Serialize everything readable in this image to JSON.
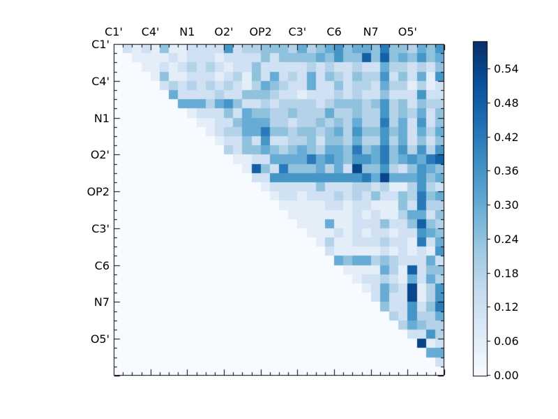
{
  "figure": {
    "background_color": "#ffffff",
    "axes_frame_color": "#000000",
    "tick_color": "#000000"
  },
  "chart_data": {
    "type": "heatmap",
    "title": "",
    "n": 36,
    "x_tick_labels": [
      "C1'",
      "C4'",
      "N1",
      "O2'",
      "OP2",
      "C3'",
      "C6",
      "N7",
      "O5'"
    ],
    "y_tick_labels": [
      "C1'",
      "C4'",
      "N1",
      "O2'",
      "OP2",
      "C3'",
      "C6",
      "N7",
      "O5'"
    ],
    "axis_label_cell_positions": [
      0,
      4,
      8,
      12,
      16,
      20,
      24,
      28,
      32
    ],
    "layout": {
      "grid": false,
      "triangle": "upper",
      "lower_triangle_value": 0.0,
      "colorbar_position": "right"
    },
    "level_step": 0.06,
    "vmin": 0.0,
    "vmax": 0.587,
    "upper_triangle_levels": [
      "21214112222623344435345645547443546",
      "1111212221222242444454644848454645",
      "112123232122422222323223225332324",
      "14112221231425232524324336242516",
      "2323232321354322522423325331312",
      "522223224443221222323224222622",
      "55535642232333323444346342433",
      "1222425443343335334336343524",
      "112245553323343435337352624",
      "12335574434434536446452535",
      "1224262233424435336352424",
      "324454345435547457463636",
      "11225555756546657456578",
      "1842744453529446324654",
      "226666666666759555645",
      "12222242223323113632",
      "1221222323242243745",
      "111112212211142733",
      "11111112121135524",
      "1115112224224843",
      "111212122122654",
      "13112223221725",
      "2111112121216",
      "545534322252",
      "11115318244",
      "1223215253",
      "125329136",
      "25229136",
      "4226247",
      "326335",
      "35433",
      "2263",
      "912",
      "55",
      "2",
      ""
    ],
    "colormap_name": "Blues",
    "colormap_stops": [
      {
        "t": 0.0,
        "color": "#f7fbff"
      },
      {
        "t": 0.125,
        "color": "#deebf7"
      },
      {
        "t": 0.25,
        "color": "#c6dbef"
      },
      {
        "t": 0.375,
        "color": "#9ecae1"
      },
      {
        "t": 0.5,
        "color": "#6baed6"
      },
      {
        "t": 0.625,
        "color": "#4292c6"
      },
      {
        "t": 0.75,
        "color": "#2171b5"
      },
      {
        "t": 0.875,
        "color": "#08519c"
      },
      {
        "t": 1.0,
        "color": "#08306b"
      }
    ],
    "colorbar": {
      "tick_labels": [
        "0.00",
        "0.06",
        "0.12",
        "0.18",
        "0.24",
        "0.30",
        "0.36",
        "0.42",
        "0.48",
        "0.54"
      ],
      "tick_values": [
        0.0,
        0.06,
        0.12,
        0.18,
        0.24,
        0.3,
        0.36,
        0.42,
        0.48,
        0.54
      ],
      "side": "right"
    }
  }
}
